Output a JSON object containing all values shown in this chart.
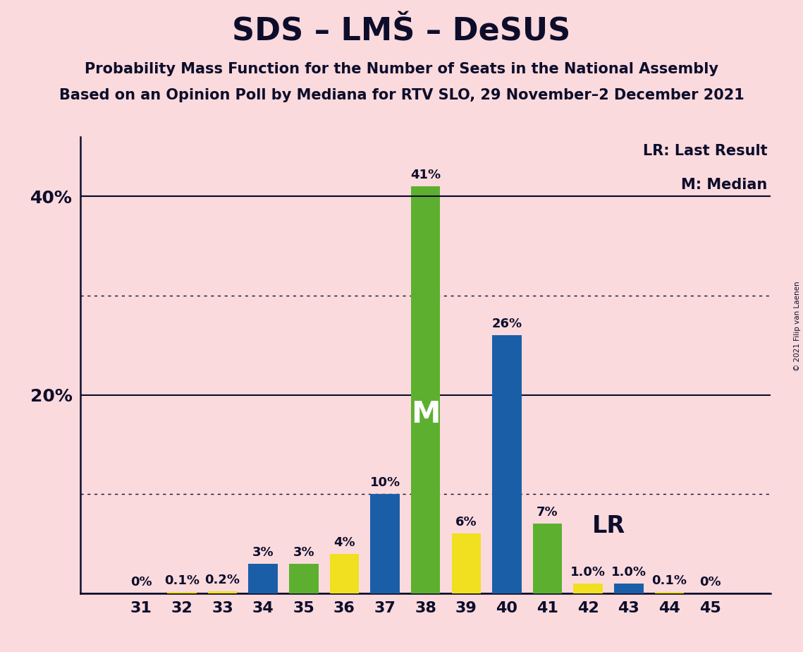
{
  "title": "SDS – LMŠ – DeSUS",
  "subtitle1": "Probability Mass Function for the Number of Seats in the National Assembly",
  "subtitle2": "Based on an Opinion Poll by Mediana for RTV SLO, 29 November–2 December 2021",
  "copyright": "© 2021 Filip van Laenen",
  "background_color": "#FADADD",
  "seats": [
    31,
    32,
    33,
    34,
    35,
    36,
    37,
    38,
    39,
    40,
    41,
    42,
    43,
    44,
    45
  ],
  "probabilities": [
    0.0,
    0.001,
    0.002,
    0.03,
    0.03,
    0.04,
    0.1,
    0.41,
    0.06,
    0.26,
    0.07,
    0.01,
    0.01,
    0.001,
    0.0
  ],
  "labels": [
    "0%",
    "0.1%",
    "0.2%",
    "3%",
    "3%",
    "4%",
    "10%",
    "41%",
    "6%",
    "26%",
    "7%",
    "1.0%",
    "1.0%",
    "0.1%",
    "0%"
  ],
  "bar_colors": [
    "#F0E020",
    "#F0E020",
    "#F0E020",
    "#1B5EA8",
    "#5DB02F",
    "#F0E020",
    "#1B5EA8",
    "#5DB02F",
    "#F0E020",
    "#1B5EA8",
    "#5DB02F",
    "#F0E020",
    "#1B5EA8",
    "#F0E020",
    "#F0E020"
  ],
  "median_seat": 38,
  "lr_seat": 43,
  "lr_legend": "LR: Last Result",
  "m_legend": "M: Median",
  "lr_text": "LR",
  "m_text": "M",
  "ylim": [
    0,
    0.46
  ],
  "bar_width": 0.72
}
